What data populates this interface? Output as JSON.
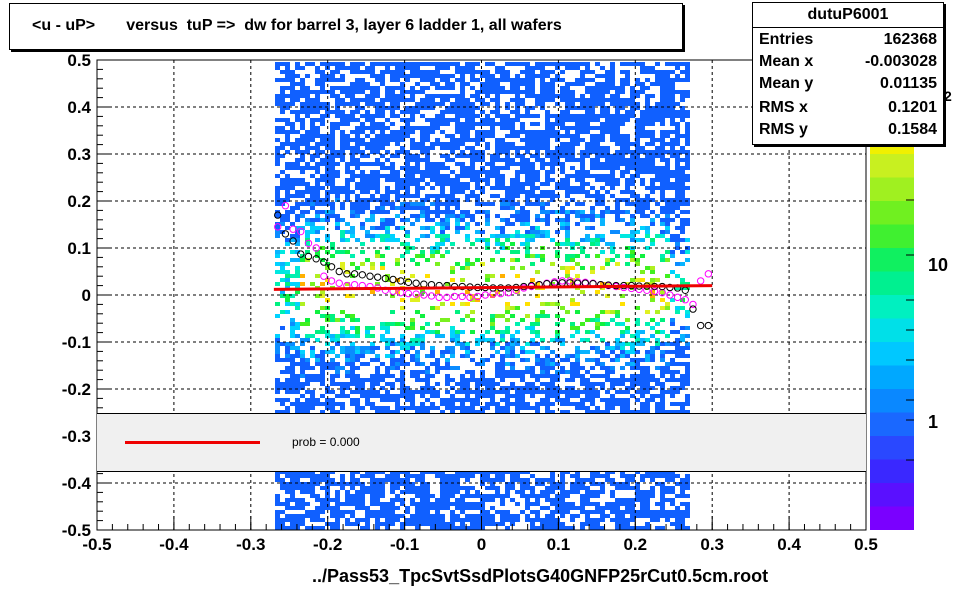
{
  "title": "<u - uP>       versus  tuP =>  dw for barrel 3, layer 6 ladder 1, all wafers",
  "stats": {
    "name": "dutuP6001",
    "rows": [
      {
        "key": "Entries",
        "value": "162368"
      },
      {
        "key": "Mean x",
        "value": "-0.003028"
      },
      {
        "key": "Mean y",
        "value": "0.01135"
      },
      {
        "key": "RMS x",
        "value": "0.1201"
      },
      {
        "key": "RMS y",
        "value": "0.1584"
      }
    ]
  },
  "xaxis_file_label": "../Pass53_TpcSvtSsdPlotsG40GNFP25rCut0.5cm.root",
  "legend": {
    "text": "prob = 0.000",
    "line_color": "#ee0000"
  },
  "palette_labels": [
    "10",
    "1"
  ],
  "palette_exponent": "2",
  "chart_data": {
    "type": "heatmap",
    "xlim": [
      -0.5,
      0.5
    ],
    "ylim": [
      -0.5,
      0.5
    ],
    "x_ticks": [
      "-0.5",
      "-0.4",
      "-0.3",
      "-0.2",
      "-0.1",
      "0",
      "0.1",
      "0.2",
      "0.3",
      "0.4",
      "0.5"
    ],
    "y_ticks": [
      "-0.5",
      "-0.4",
      "-0.3",
      "-0.2",
      "-0.1",
      "0",
      "0.1",
      "0.2",
      "0.3",
      "0.4",
      "0.5"
    ],
    "grid": true,
    "fit_line": {
      "x": [
        -0.27,
        0.3
      ],
      "y": [
        0.012,
        0.02
      ],
      "color": "#ee0000"
    },
    "profile_black": {
      "x": [
        -0.265,
        -0.255,
        -0.245,
        -0.235,
        -0.225,
        -0.215,
        -0.205,
        -0.195,
        -0.185,
        -0.175,
        -0.165,
        -0.155,
        -0.145,
        -0.135,
        -0.125,
        -0.115,
        -0.105,
        -0.095,
        -0.085,
        -0.075,
        -0.065,
        -0.055,
        -0.045,
        -0.035,
        -0.025,
        -0.015,
        -0.005,
        0.005,
        0.015,
        0.025,
        0.035,
        0.045,
        0.055,
        0.065,
        0.075,
        0.085,
        0.095,
        0.105,
        0.115,
        0.125,
        0.135,
        0.145,
        0.155,
        0.165,
        0.175,
        0.185,
        0.195,
        0.205,
        0.215,
        0.225,
        0.235,
        0.245,
        0.255,
        0.265,
        0.275,
        0.285,
        0.295
      ],
      "y": [
        0.17,
        0.13,
        0.115,
        0.087,
        0.082,
        0.077,
        0.07,
        0.06,
        0.05,
        0.045,
        0.045,
        0.043,
        0.04,
        0.038,
        0.035,
        0.033,
        0.03,
        0.027,
        0.025,
        0.023,
        0.022,
        0.02,
        0.02,
        0.018,
        0.018,
        0.017,
        0.016,
        0.016,
        0.015,
        0.015,
        0.015,
        0.016,
        0.018,
        0.02,
        0.022,
        0.024,
        0.025,
        0.026,
        0.026,
        0.025,
        0.025,
        0.024,
        0.022,
        0.021,
        0.02,
        0.02,
        0.02,
        0.019,
        0.019,
        0.018,
        0.018,
        0.016,
        0.015,
        0.01,
        -0.03,
        -0.065,
        -0.065
      ]
    },
    "profile_magenta": {
      "x": [
        -0.265,
        -0.255,
        -0.245,
        -0.235,
        -0.225,
        -0.215,
        -0.205,
        -0.195,
        -0.185,
        -0.175,
        -0.165,
        -0.155,
        -0.145,
        -0.135,
        -0.125,
        -0.115,
        -0.105,
        -0.095,
        -0.085,
        -0.075,
        -0.065,
        -0.055,
        -0.045,
        -0.035,
        -0.025,
        -0.015,
        -0.005,
        0.005,
        0.015,
        0.025,
        0.035,
        0.045,
        0.055,
        0.065,
        0.075,
        0.085,
        0.095,
        0.105,
        0.115,
        0.125,
        0.135,
        0.145,
        0.155,
        0.165,
        0.175,
        0.185,
        0.195,
        0.205,
        0.215,
        0.225,
        0.235,
        0.245,
        0.255,
        0.265,
        0.275,
        0.285,
        0.295
      ],
      "y": [
        0.145,
        0.19,
        0.14,
        0.135,
        0.11,
        0.1,
        0.04,
        0.03,
        0.025,
        0.02,
        0.022,
        0.02,
        0.018,
        0.015,
        0.01,
        0.008,
        0.005,
        0.003,
        0.002,
        0.0,
        -0.002,
        -0.005,
        -0.005,
        -0.003,
        -0.003,
        -0.005,
        -0.003,
        0.0,
        0.002,
        0.003,
        0.005,
        0.01,
        0.015,
        0.018,
        0.022,
        0.025,
        0.028,
        0.03,
        0.03,
        0.028,
        0.027,
        0.025,
        0.022,
        0.02,
        0.018,
        0.016,
        0.014,
        0.012,
        0.01,
        0.008,
        0.005,
        0.0,
        -0.005,
        -0.01,
        -0.02,
        0.03,
        0.045
      ]
    }
  }
}
